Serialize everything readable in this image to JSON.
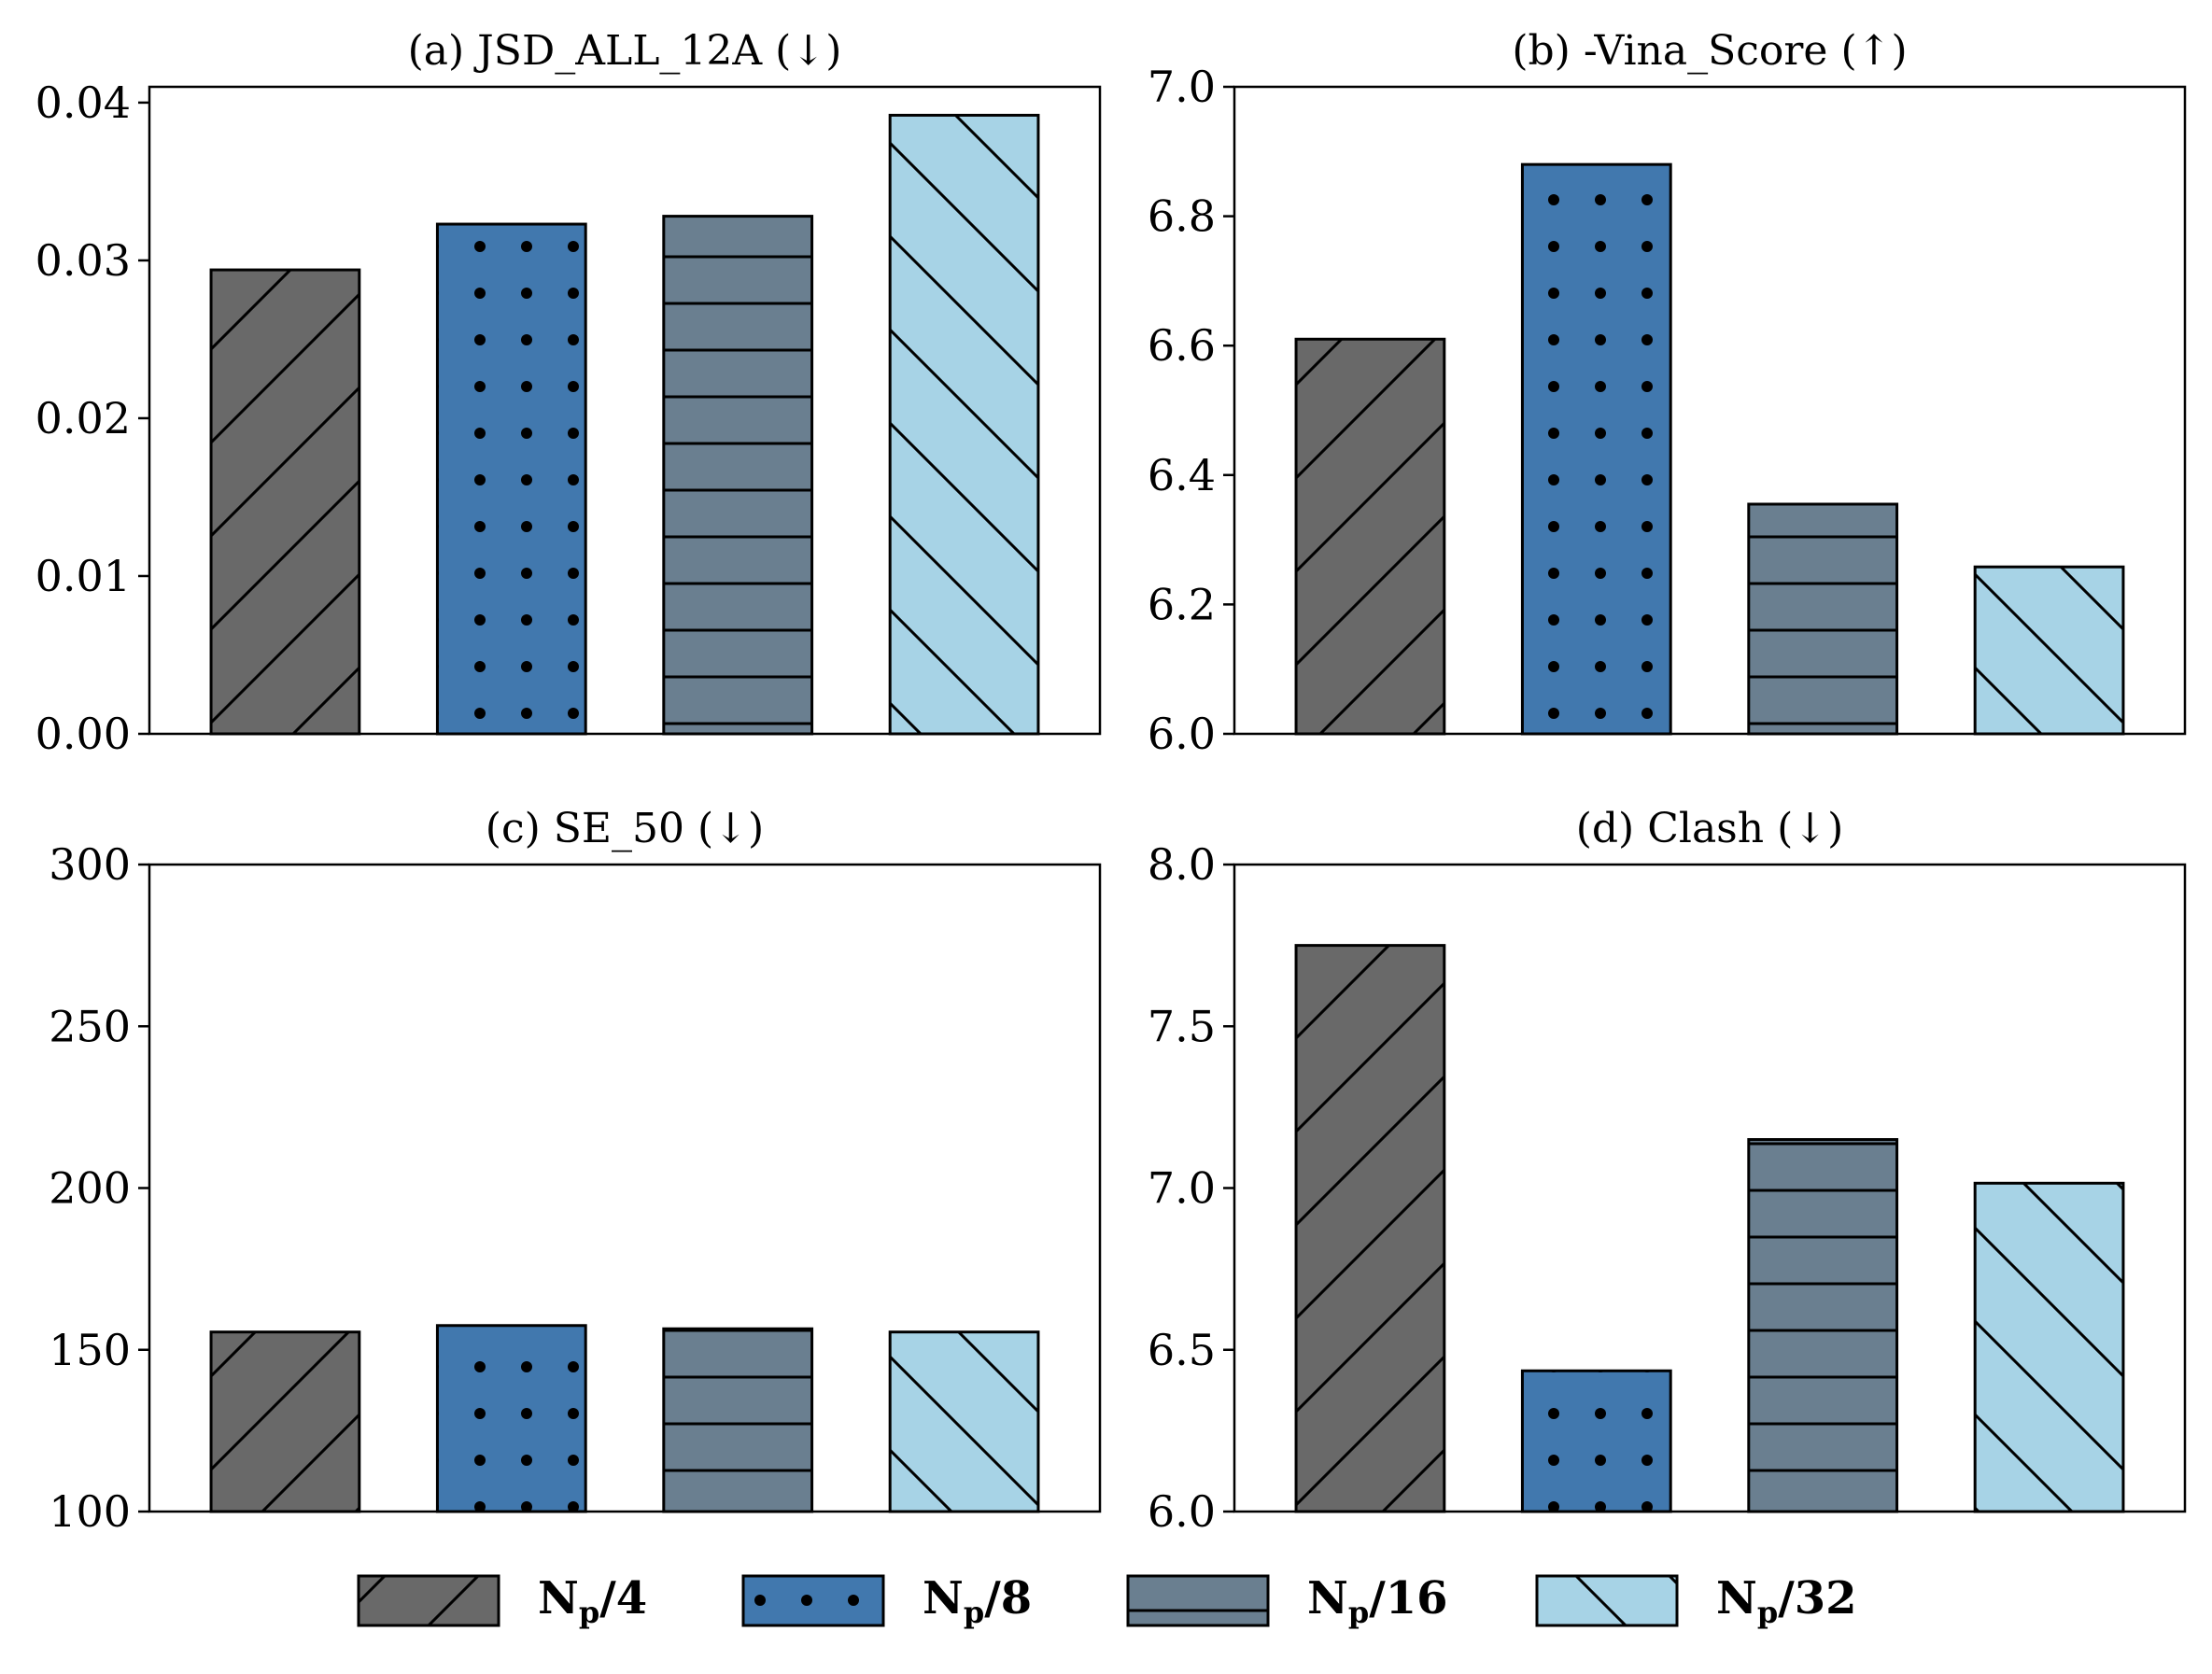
{
  "chart_data": [
    {
      "type": "bar",
      "title": "(a) JSD_ALL_12A (↓)",
      "ylim": [
        0,
        0.041
      ],
      "yticks": [
        "0.00",
        "0.01",
        "0.02",
        "0.03",
        "0.04"
      ],
      "ytick_values": [
        0,
        0.01,
        0.02,
        0.03,
        0.04
      ],
      "values": [
        0.0294,
        0.0323,
        0.0328,
        0.0392
      ]
    },
    {
      "type": "bar",
      "title": "(b) -Vina_Score (↑)",
      "ylim": [
        6.0,
        7.0
      ],
      "yticks": [
        "6.0",
        "6.2",
        "6.4",
        "6.6",
        "6.8",
        "7.0"
      ],
      "ytick_values": [
        6.0,
        6.2,
        6.4,
        6.6,
        6.8,
        7.0
      ],
      "values": [
        6.61,
        6.88,
        6.355,
        6.258
      ]
    },
    {
      "type": "bar",
      "title": "(c) SE_50 (↓)",
      "ylim": [
        100,
        300
      ],
      "yticks": [
        "100",
        "150",
        "200",
        "250",
        "300"
      ],
      "ytick_values": [
        100,
        150,
        200,
        250,
        300
      ],
      "values": [
        155.5,
        157.5,
        156.5,
        155.5
      ]
    },
    {
      "type": "bar",
      "title": "(d) Clash (↓)",
      "ylim": [
        6.0,
        8.0
      ],
      "yticks": [
        "6.0",
        "6.5",
        "7.0",
        "7.5",
        "8.0"
      ],
      "ytick_values": [
        6.0,
        6.5,
        7.0,
        7.5,
        8.0
      ],
      "values": [
        7.75,
        6.435,
        7.15,
        7.015
      ]
    }
  ],
  "legend": {
    "placement": "bottom",
    "items": [
      {
        "main": "N",
        "sub": "p",
        "suffix": "/4",
        "color": "#696969",
        "hatch": "diagonal-forward"
      },
      {
        "main": "N",
        "sub": "p",
        "suffix": "/8",
        "color": "#4178ae",
        "hatch": "dots"
      },
      {
        "main": "N",
        "sub": "p",
        "suffix": "/16",
        "color": "#6a7f90",
        "hatch": "horizontal"
      },
      {
        "main": "N",
        "sub": "p",
        "suffix": "/32",
        "color": "#a7d3e6",
        "hatch": "diagonal-back"
      }
    ]
  }
}
